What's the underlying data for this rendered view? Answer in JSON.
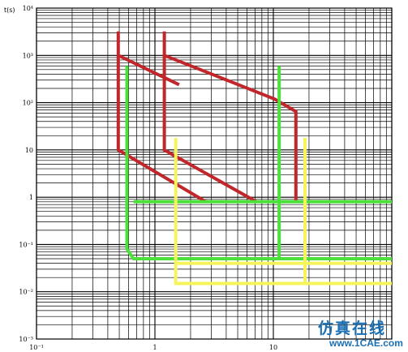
{
  "chart_data": {
    "type": "line",
    "title": "",
    "ylabel": "t(s)",
    "xlabel": "",
    "x_scale": "log",
    "y_scale": "log",
    "xlim": [
      0.1,
      100
    ],
    "ylim": [
      0.001,
      10000
    ],
    "grid": true,
    "x_ticks": [
      {
        "value": 0.1,
        "label": "10⁻¹"
      },
      {
        "value": 1,
        "label": "1"
      },
      {
        "value": 10,
        "label": "10"
      }
    ],
    "y_ticks": [
      {
        "value": 10000,
        "label": "10⁴"
      },
      {
        "value": 1000,
        "label": "10³"
      },
      {
        "value": 100,
        "label": "10²"
      },
      {
        "value": 10,
        "label": "10"
      },
      {
        "value": 1,
        "label": "1"
      },
      {
        "value": 0.1,
        "label": "10⁻¹"
      },
      {
        "value": 0.01,
        "label": "10⁻²"
      },
      {
        "value": 0.001,
        "label": "10⁻³"
      }
    ],
    "colors": {
      "red": "#c0262a",
      "green": "#4be03a",
      "yellow": "#f5f55a",
      "grid": "#000000"
    },
    "series": [
      {
        "color": "red",
        "points": [
          [
            0.49,
            3200
          ],
          [
            0.49,
            1000
          ],
          [
            1.6,
            240
          ]
        ]
      },
      {
        "color": "red",
        "points": [
          [
            0.49,
            1000
          ],
          [
            0.49,
            10
          ],
          [
            2.7,
            0.8
          ]
        ]
      },
      {
        "color": "red",
        "points": [
          [
            1.2,
            3200
          ],
          [
            1.2,
            1000
          ],
          [
            10.2,
            120
          ],
          [
            15.5,
            65
          ],
          [
            15.5,
            0.8
          ]
        ]
      },
      {
        "color": "red",
        "points": [
          [
            1.2,
            1000
          ],
          [
            1.2,
            10
          ],
          [
            7.2,
            0.8
          ]
        ]
      },
      {
        "color": "green",
        "points": [
          [
            0.58,
            600
          ],
          [
            0.58,
            0.08
          ],
          [
            0.66,
            0.05
          ],
          [
            100,
            0.05
          ]
        ]
      },
      {
        "color": "green",
        "points": [
          [
            0.66,
            0.8
          ],
          [
            100,
            0.8
          ]
        ]
      },
      {
        "color": "green",
        "points": [
          [
            11.2,
            600
          ],
          [
            11.2,
            0.05
          ]
        ]
      },
      {
        "color": "yellow",
        "points": [
          [
            1.5,
            18
          ],
          [
            1.5,
            0.015
          ],
          [
            100,
            0.015
          ]
        ]
      },
      {
        "color": "yellow",
        "points": [
          [
            1.5,
            0.04
          ],
          [
            100,
            0.04
          ]
        ]
      },
      {
        "color": "yellow",
        "points": [
          [
            18.5,
            18
          ],
          [
            18.5,
            0.015
          ]
        ]
      }
    ]
  },
  "watermark": {
    "chinese": "仿真在线",
    "url": "www.1CAE.com"
  }
}
